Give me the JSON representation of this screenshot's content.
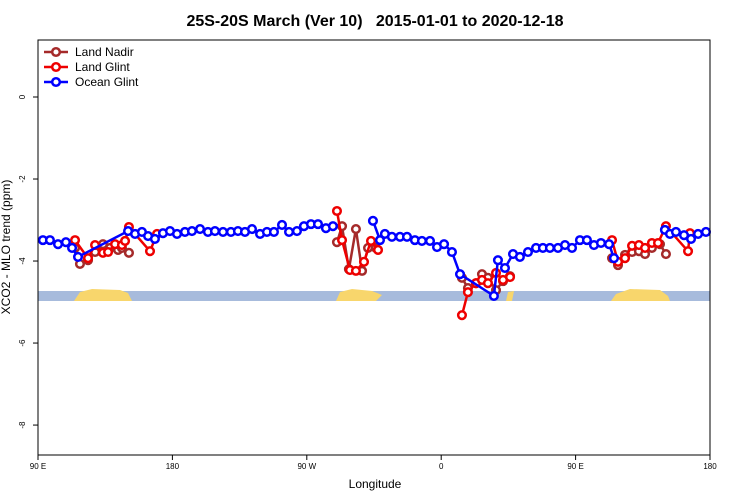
{
  "chart_data": {
    "type": "line",
    "title": "25S-20S March (Ver 10)   2015-01-01 to 2020-12-18",
    "xlabel": "Longitude",
    "ylabel": "XCO2 - MLO trend (ppm)",
    "xlim": [
      90,
      540
    ],
    "xticks": [
      {
        "value": 90,
        "label": "90 E"
      },
      {
        "value": 180,
        "label": "180"
      },
      {
        "value": 270,
        "label": "90 W"
      },
      {
        "value": 360,
        "label": "0"
      },
      {
        "value": 450,
        "label": "90 E"
      },
      {
        "value": 540,
        "label": "180"
      }
    ],
    "ylim": [
      -8.73,
      1.39
    ],
    "yticks": [
      0,
      -2,
      -4,
      -6,
      -8
    ],
    "legend": "top-left",
    "series": [
      {
        "name": "Land Nadir",
        "color": "#a52a2a",
        "x": [
          114.8,
          118.1,
          123.5,
          128.2,
          133.5,
          138.2,
          143.6,
          146.2,
          150.9,
          null,
          290.2,
          293.6,
          298.2,
          302.9,
          307.0,
          311.0,
          316.3,
          null,
          373.9,
          377.9,
          383.3,
          387.3,
          391.3,
          396.7,
          401.4,
          406.1,
          null,
          474.4,
          478.4,
          483.1,
          487.8,
          492.4,
          496.5,
          501.1,
          506.5,
          510.5
        ],
        "values": [
          -3.68,
          -4.07,
          -3.98,
          -3.78,
          -3.59,
          -3.68,
          -3.73,
          -3.68,
          -3.8,
          null,
          -3.54,
          -3.15,
          -4.2,
          -3.22,
          -4.24,
          -3.68,
          -3.68,
          null,
          -4.41,
          -4.66,
          -4.54,
          -4.32,
          -4.41,
          -4.71,
          -4.49,
          -4.37,
          null,
          -3.93,
          -4.1,
          -3.85,
          -3.78,
          -3.76,
          -3.83,
          -3.68,
          -3.59,
          -3.83
        ]
      },
      {
        "name": "Land Glint",
        "color": "#ee0000",
        "x": [
          114.8,
          123.5,
          128.2,
          133.5,
          136.9,
          141.6,
          146.2,
          148.3,
          150.9,
          165.0,
          169.7,
          null,
          290.2,
          293.6,
          298.9,
          302.9,
          308.3,
          313.0,
          317.7,
          null,
          373.9,
          377.9,
          383.3,
          387.3,
          391.3,
          396.7,
          401.4,
          406.1,
          null,
          474.4,
          478.4,
          483.1,
          487.8,
          492.4,
          496.5,
          501.1,
          505.2,
          510.5,
          525.3,
          526.6
        ],
        "values": [
          -3.49,
          -3.93,
          -3.61,
          -3.8,
          -3.78,
          -3.59,
          -3.61,
          -3.51,
          -3.17,
          -3.76,
          -3.34,
          null,
          -2.78,
          -3.49,
          -4.22,
          -4.24,
          -4.02,
          -3.51,
          -3.73,
          null,
          -5.32,
          -4.76,
          -4.54,
          -4.46,
          -4.54,
          -4.29,
          -4.46,
          -4.39,
          null,
          -3.49,
          -4.02,
          -3.93,
          -3.63,
          -3.61,
          -3.68,
          -3.56,
          -3.56,
          -3.15,
          -3.76,
          -3.32
        ]
      },
      {
        "name": "Ocean Glint",
        "color": "#0000ff",
        "x": [
          93.3,
          98.0,
          103.4,
          108.7,
          112.8,
          116.8,
          150.3,
          155.0,
          159.6,
          163.7,
          168.3,
          173.7,
          178.4,
          183.1,
          188.4,
          193.1,
          198.5,
          203.8,
          208.5,
          213.9,
          219.2,
          223.9,
          228.6,
          233.3,
          238.7,
          243.3,
          248.0,
          253.4,
          258.1,
          263.4,
          268.1,
          272.8,
          277.5,
          282.8,
          287.5,
          null,
          314.3,
          319.0,
          322.3,
          327.0,
          332.4,
          337.1,
          342.4,
          347.1,
          352.5,
          357.2,
          361.9,
          367.2,
          372.6,
          395.3,
          398.0,
          402.7,
          408.1,
          412.7,
          418.1,
          423.5,
          428.1,
          432.8,
          438.2,
          442.9,
          447.6,
          452.9,
          457.6,
          462.3,
          467.0,
          472.4,
          475.7,
          null,
          509.8,
          513.2,
          517.2,
          522.6,
          527.3,
          532.0,
          537.3
        ],
        "values": [
          -3.49,
          -3.49,
          -3.59,
          -3.54,
          -3.68,
          -3.9,
          -3.27,
          -3.34,
          -3.29,
          -3.39,
          -3.46,
          -3.32,
          -3.27,
          -3.34,
          -3.29,
          -3.27,
          -3.22,
          -3.29,
          -3.27,
          -3.29,
          -3.29,
          -3.27,
          -3.29,
          -3.22,
          -3.34,
          -3.29,
          -3.29,
          -3.12,
          -3.29,
          -3.27,
          -3.15,
          -3.1,
          -3.1,
          -3.2,
          -3.15,
          null,
          -3.02,
          -3.49,
          -3.34,
          -3.41,
          -3.41,
          -3.41,
          -3.49,
          -3.51,
          -3.51,
          -3.66,
          -3.59,
          -3.78,
          -4.32,
          -4.85,
          -3.98,
          -4.17,
          -3.83,
          -3.9,
          -3.78,
          -3.68,
          -3.68,
          -3.68,
          -3.68,
          -3.61,
          -3.68,
          -3.49,
          -3.49,
          -3.61,
          -3.56,
          -3.59,
          -3.93,
          null,
          -3.24,
          -3.34,
          -3.29,
          -3.37,
          -3.46,
          -3.34,
          -3.29
        ]
      }
    ]
  }
}
